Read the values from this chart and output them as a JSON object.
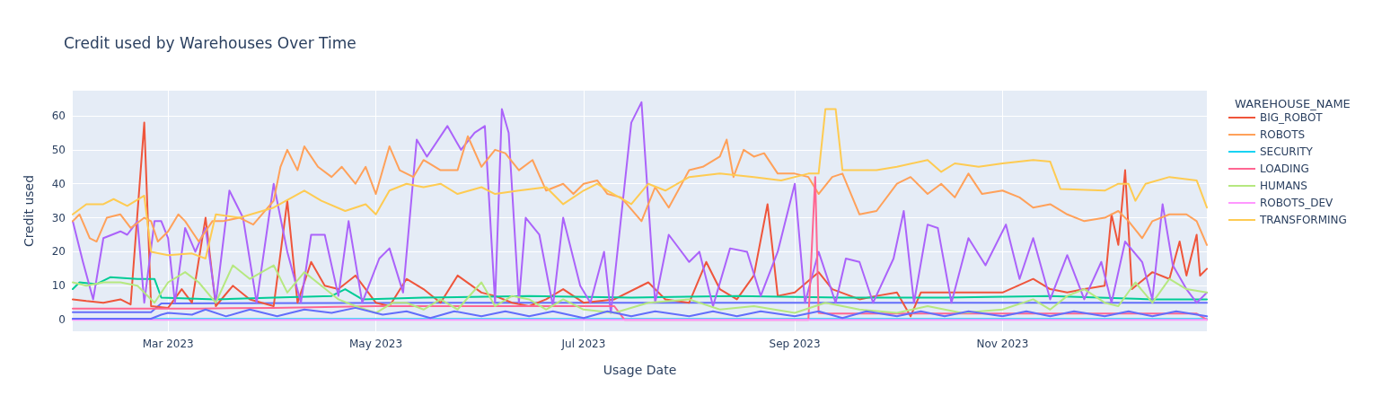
{
  "chart_data": {
    "type": "line",
    "title": "Credit used by Warehouses Over Time",
    "xlabel": "Usage Date",
    "ylabel": "Credit used",
    "legend_title": "WAREHOUSE_NAME",
    "legend": "right",
    "grid": true,
    "marker": "none",
    "line_style": "solid",
    "xlim": [
      "2023-02-01",
      "2023-12-31"
    ],
    "xticks": [
      {
        "value": "2023-03-01",
        "label": "Mar 2023"
      },
      {
        "value": "2023-05-01",
        "label": "May 2023"
      },
      {
        "value": "2023-07-01",
        "label": "Jul 2023"
      },
      {
        "value": "2023-09-01",
        "label": "Sep 2023"
      },
      {
        "value": "2023-11-01",
        "label": "Nov 2023"
      }
    ],
    "ylim": [
      -3.4,
      67.4
    ],
    "yticks": [
      0,
      10,
      20,
      30,
      40,
      50,
      60
    ],
    "series": [
      {
        "color": "#636efa",
        "x": [
          "2023-02-01",
          "2023-02-24",
          "2023-02-27",
          "2023-06-01",
          "2023-09-01",
          "2023-12-31"
        ],
        "values": [
          2.2,
          2.2,
          4.8,
          5,
          5,
          5
        ]
      },
      {
        "name": "BIG_ROBOT",
        "color": "#ef553b",
        "x": [
          "2023-02-01",
          "2023-02-05",
          "2023-02-10",
          "2023-02-15",
          "2023-02-18",
          "2023-02-22",
          "2023-02-24",
          "2023-03-01",
          "2023-03-05",
          "2023-03-08",
          "2023-03-12",
          "2023-03-15",
          "2023-03-20",
          "2023-03-25",
          "2023-04-01",
          "2023-04-05",
          "2023-04-08",
          "2023-04-12",
          "2023-04-16",
          "2023-04-20",
          "2023-04-25",
          "2023-05-01",
          "2023-05-05",
          "2023-05-10",
          "2023-05-15",
          "2023-05-20",
          "2023-05-25",
          "2023-06-01",
          "2023-06-05",
          "2023-06-10",
          "2023-06-15",
          "2023-06-20",
          "2023-06-25",
          "2023-07-01",
          "2023-07-10",
          "2023-07-20",
          "2023-07-25",
          "2023-08-01",
          "2023-08-06",
          "2023-08-10",
          "2023-08-15",
          "2023-08-20",
          "2023-08-24",
          "2023-08-27",
          "2023-09-01",
          "2023-09-08",
          "2023-09-12",
          "2023-09-20",
          "2023-09-25",
          "2023-10-01",
          "2023-10-05",
          "2023-10-08",
          "2023-10-15",
          "2023-10-25",
          "2023-11-01",
          "2023-11-10",
          "2023-11-15",
          "2023-11-20",
          "2023-11-25",
          "2023-12-01",
          "2023-12-03",
          "2023-12-05",
          "2023-12-07",
          "2023-12-09",
          "2023-12-15",
          "2023-12-20",
          "2023-12-23",
          "2023-12-25",
          "2023-12-28",
          "2023-12-29",
          "2023-12-31"
        ],
        "values": [
          6,
          5.5,
          5,
          6,
          4.5,
          58,
          4,
          3.5,
          9,
          5,
          30,
          4,
          10,
          6,
          4,
          35,
          5,
          17,
          10,
          9,
          13,
          5,
          4,
          12,
          9,
          5,
          13,
          8,
          7,
          5,
          4,
          6,
          9,
          5,
          6,
          11,
          6,
          5,
          17,
          9,
          6,
          13,
          34,
          7,
          8,
          14,
          9,
          6,
          7,
          8,
          1,
          8,
          8,
          8,
          8,
          12,
          9,
          8,
          9,
          10,
          31,
          22,
          44,
          9,
          14,
          12,
          23,
          13,
          25,
          13,
          15
        ]
      },
      {
        "color": "#00cc96",
        "x": [
          "2023-02-01",
          "2023-02-03",
          "2023-02-08",
          "2023-02-12",
          "2023-02-20",
          "2023-02-25",
          "2023-02-27",
          "2023-03-15",
          "2023-04-01",
          "2023-04-18",
          "2023-04-22",
          "2023-04-27",
          "2023-05-15",
          "2023-06-15",
          "2023-07-15",
          "2023-08-15",
          "2023-09-15",
          "2023-10-15",
          "2023-11-15",
          "2023-12-15",
          "2023-12-31"
        ],
        "values": [
          9,
          11,
          10.5,
          12.5,
          12,
          12,
          6.5,
          6,
          6.5,
          7,
          9,
          6,
          6.5,
          7,
          6.5,
          7,
          6.5,
          6.5,
          7,
          6,
          6
        ]
      },
      {
        "color": "#ab63fa",
        "x": [
          "2023-02-01",
          "2023-02-04",
          "2023-02-07",
          "2023-02-10",
          "2023-02-15",
          "2023-02-17",
          "2023-02-20",
          "2023-02-22",
          "2023-02-25",
          "2023-02-27",
          "2023-03-01",
          "2023-03-03",
          "2023-03-06",
          "2023-03-09",
          "2023-03-12",
          "2023-03-15",
          "2023-03-19",
          "2023-03-23",
          "2023-03-27",
          "2023-04-01",
          "2023-04-05",
          "2023-04-09",
          "2023-04-12",
          "2023-04-16",
          "2023-04-20",
          "2023-04-23",
          "2023-04-27",
          "2023-05-02",
          "2023-05-05",
          "2023-05-09",
          "2023-05-13",
          "2023-05-16",
          "2023-05-22",
          "2023-05-26",
          "2023-05-30",
          "2023-06-02",
          "2023-06-05",
          "2023-06-07",
          "2023-06-09",
          "2023-06-12",
          "2023-06-14",
          "2023-06-18",
          "2023-06-22",
          "2023-06-25",
          "2023-06-30",
          "2023-07-03",
          "2023-07-07",
          "2023-07-09",
          "2023-07-15",
          "2023-07-18",
          "2023-07-22",
          "2023-07-26",
          "2023-08-01",
          "2023-08-04",
          "2023-08-08",
          "2023-08-13",
          "2023-08-18",
          "2023-08-22",
          "2023-08-27",
          "2023-09-01",
          "2023-09-04",
          "2023-09-08",
          "2023-09-13",
          "2023-09-16",
          "2023-09-20",
          "2023-09-24",
          "2023-09-30",
          "2023-10-03",
          "2023-10-06",
          "2023-10-10",
          "2023-10-13",
          "2023-10-17",
          "2023-10-22",
          "2023-10-27",
          "2023-11-02",
          "2023-11-06",
          "2023-11-10",
          "2023-11-15",
          "2023-11-20",
          "2023-11-25",
          "2023-11-30",
          "2023-12-03",
          "2023-12-07",
          "2023-12-12",
          "2023-12-15",
          "2023-12-18",
          "2023-12-21",
          "2023-12-25",
          "2023-12-28",
          "2023-12-31"
        ],
        "values": [
          29,
          17,
          6,
          24,
          26,
          25,
          29,
          5,
          29,
          29,
          24,
          5,
          27,
          20,
          27,
          5,
          38,
          30,
          5,
          40,
          20,
          5,
          25,
          25,
          7,
          29,
          5,
          18,
          21,
          8,
          53,
          48,
          57,
          50,
          55,
          57,
          5,
          62,
          55,
          5,
          30,
          25,
          4,
          30,
          10,
          5,
          20,
          2,
          58,
          64,
          5,
          25,
          17,
          20,
          4,
          21,
          20,
          7,
          20,
          40,
          5,
          20,
          5,
          18,
          17,
          5,
          18,
          32,
          5,
          28,
          27,
          5,
          24,
          16,
          28,
          12,
          24,
          6,
          19,
          6,
          17,
          5,
          23,
          17,
          6,
          34,
          16,
          9,
          5,
          8
        ]
      },
      {
        "name": "ROBOTS",
        "color": "#ffa15a",
        "x": [
          "2023-02-01",
          "2023-02-03",
          "2023-02-06",
          "2023-02-08",
          "2023-02-11",
          "2023-02-15",
          "2023-02-18",
          "2023-02-22",
          "2023-02-24",
          "2023-02-26",
          "2023-03-01",
          "2023-03-04",
          "2023-03-06",
          "2023-03-08",
          "2023-03-10",
          "2023-03-14",
          "2023-03-17",
          "2023-03-22",
          "2023-03-26",
          "2023-04-01",
          "2023-04-03",
          "2023-04-05",
          "2023-04-08",
          "2023-04-10",
          "2023-04-14",
          "2023-04-18",
          "2023-04-21",
          "2023-04-25",
          "2023-04-28",
          "2023-05-01",
          "2023-05-05",
          "2023-05-08",
          "2023-05-12",
          "2023-05-15",
          "2023-05-20",
          "2023-05-25",
          "2023-05-28",
          "2023-06-01",
          "2023-06-05",
          "2023-06-08",
          "2023-06-12",
          "2023-06-16",
          "2023-06-20",
          "2023-06-25",
          "2023-06-28",
          "2023-07-01",
          "2023-07-05",
          "2023-07-08",
          "2023-07-12",
          "2023-07-18",
          "2023-07-22",
          "2023-07-26",
          "2023-08-01",
          "2023-08-05",
          "2023-08-10",
          "2023-08-12",
          "2023-08-14",
          "2023-08-17",
          "2023-08-20",
          "2023-08-23",
          "2023-08-27",
          "2023-09-01",
          "2023-09-05",
          "2023-09-08",
          "2023-09-12",
          "2023-09-15",
          "2023-09-20",
          "2023-09-25",
          "2023-10-01",
          "2023-10-05",
          "2023-10-10",
          "2023-10-14",
          "2023-10-18",
          "2023-10-22",
          "2023-10-26",
          "2023-11-01",
          "2023-11-06",
          "2023-11-10",
          "2023-11-15",
          "2023-11-20",
          "2023-11-25",
          "2023-12-01",
          "2023-12-05",
          "2023-12-08",
          "2023-12-12",
          "2023-12-15",
          "2023-12-20",
          "2023-12-25",
          "2023-12-28",
          "2023-12-31"
        ],
        "values": [
          29,
          31,
          24,
          23,
          30,
          31,
          27,
          30,
          29,
          23,
          26,
          31,
          29,
          26,
          23,
          29,
          29,
          30,
          28,
          35,
          45,
          50,
          44,
          51,
          45,
          42,
          45,
          40,
          45,
          37,
          51,
          44,
          42,
          47,
          44,
          44,
          54,
          45,
          50,
          49,
          44,
          47,
          38,
          40,
          37,
          40,
          41,
          37,
          36,
          29,
          39,
          33,
          44,
          45,
          48,
          53,
          42,
          50,
          48,
          49,
          43,
          43,
          42,
          37,
          42,
          43,
          31,
          32,
          40,
          42,
          37,
          40,
          36,
          43,
          37,
          38,
          36,
          33,
          34,
          31,
          29,
          30,
          32,
          29,
          24,
          29,
          31,
          31,
          29,
          22
        ]
      },
      {
        "name": "SECURITY",
        "color": "#19d3f3",
        "x": [
          "2023-02-01",
          "2023-06-01",
          "2023-10-01",
          "2023-12-31"
        ],
        "values": [
          0.2,
          0.2,
          0.2,
          0.2
        ]
      },
      {
        "name": "LOADING",
        "color": "#ff6692",
        "x": [
          "2023-02-01",
          "2023-03-10",
          "2023-04-01",
          "2023-05-01",
          "2023-07-10",
          "2023-07-13",
          "2023-09-05",
          "2023-09-07",
          "2023-09-08",
          "2023-09-10",
          "2023-12-28",
          "2023-12-31"
        ],
        "values": [
          3.3,
          3.3,
          3.5,
          4,
          4,
          0,
          0,
          42,
          2,
          1.8,
          1.8,
          0
        ]
      },
      {
        "name": "HUMANS",
        "color": "#b6e880",
        "x": [
          "2023-02-01",
          "2023-02-05",
          "2023-02-10",
          "2023-02-15",
          "2023-02-20",
          "2023-02-25",
          "2023-03-01",
          "2023-03-06",
          "2023-03-10",
          "2023-03-15",
          "2023-03-20",
          "2023-03-25",
          "2023-04-01",
          "2023-04-05",
          "2023-04-10",
          "2023-04-15",
          "2023-04-20",
          "2023-04-25",
          "2023-05-01",
          "2023-05-06",
          "2023-05-10",
          "2023-05-15",
          "2023-05-20",
          "2023-05-25",
          "2023-06-01",
          "2023-06-05",
          "2023-06-10",
          "2023-06-15",
          "2023-06-20",
          "2023-06-25",
          "2023-07-01",
          "2023-07-10",
          "2023-07-20",
          "2023-08-01",
          "2023-08-10",
          "2023-08-20",
          "2023-09-01",
          "2023-09-10",
          "2023-09-20",
          "2023-10-01",
          "2023-10-10",
          "2023-10-20",
          "2023-11-01",
          "2023-11-10",
          "2023-11-15",
          "2023-11-20",
          "2023-11-25",
          "2023-12-01",
          "2023-12-05",
          "2023-12-10",
          "2023-12-15",
          "2023-12-20",
          "2023-12-25",
          "2023-12-31"
        ],
        "values": [
          11,
          10,
          11,
          11,
          10,
          5,
          11,
          14,
          11,
          5,
          16,
          12,
          16,
          8,
          14,
          10,
          6,
          4,
          2,
          5,
          5,
          3,
          6,
          3,
          11,
          4,
          7,
          6,
          3,
          6,
          3,
          2,
          5,
          6,
          3,
          4,
          2,
          5,
          3,
          2,
          4,
          2,
          3,
          6,
          3,
          7,
          9,
          5,
          4,
          11,
          5,
          12,
          9,
          8
        ]
      },
      {
        "name": "ROBOTS_DEV",
        "color": "#ff97ff",
        "x": [
          "2023-02-01",
          "2023-12-31"
        ],
        "values": [
          0,
          0
        ]
      },
      {
        "name": "TRANSFORMING",
        "color": "#fecb52",
        "x": [
          "2023-02-01",
          "2023-02-05",
          "2023-02-10",
          "2023-02-13",
          "2023-02-17",
          "2023-02-22",
          "2023-02-24",
          "2023-03-01",
          "2023-03-08",
          "2023-03-12",
          "2023-03-15",
          "2023-03-22",
          "2023-04-01",
          "2023-04-10",
          "2023-04-15",
          "2023-04-22",
          "2023-04-28",
          "2023-05-01",
          "2023-05-05",
          "2023-05-10",
          "2023-05-15",
          "2023-05-20",
          "2023-05-25",
          "2023-06-01",
          "2023-06-05",
          "2023-06-12",
          "2023-06-20",
          "2023-06-25",
          "2023-07-01",
          "2023-07-05",
          "2023-07-08",
          "2023-07-15",
          "2023-07-20",
          "2023-07-25",
          "2023-08-01",
          "2023-08-10",
          "2023-08-20",
          "2023-08-28",
          "2023-09-05",
          "2023-09-08",
          "2023-09-10",
          "2023-09-13",
          "2023-09-15",
          "2023-09-25",
          "2023-10-01",
          "2023-10-10",
          "2023-10-14",
          "2023-10-18",
          "2023-10-25",
          "2023-11-01",
          "2023-11-10",
          "2023-11-15",
          "2023-11-18",
          "2023-12-01",
          "2023-12-05",
          "2023-12-08",
          "2023-12-10",
          "2023-12-13",
          "2023-12-20",
          "2023-12-28",
          "2023-12-31"
        ],
        "values": [
          31,
          34,
          34,
          35.5,
          33.5,
          36.5,
          20,
          19,
          19.5,
          18,
          31,
          30,
          33,
          38,
          35,
          32,
          34,
          31,
          38,
          40,
          39,
          40,
          37,
          39,
          37,
          38,
          39,
          34,
          38,
          40,
          38,
          34,
          40,
          38,
          42,
          43,
          42,
          41,
          43,
          43,
          62,
          62,
          44,
          44,
          45,
          47,
          43.5,
          46,
          45,
          46,
          47,
          46.5,
          38.5,
          38,
          40,
          40,
          35,
          40,
          42,
          41,
          33
        ]
      },
      {
        "color": "#636efa",
        "x": [
          "2023-02-01",
          "2023-02-24",
          "2023-02-27",
          "2023-03-01",
          "2023-03-08",
          "2023-03-12",
          "2023-03-18",
          "2023-03-25",
          "2023-04-02",
          "2023-04-10",
          "2023-04-18",
          "2023-04-25",
          "2023-05-03",
          "2023-05-10",
          "2023-05-17",
          "2023-05-24",
          "2023-06-01",
          "2023-06-08",
          "2023-06-15",
          "2023-06-22",
          "2023-07-01",
          "2023-07-08",
          "2023-07-15",
          "2023-07-22",
          "2023-08-01",
          "2023-08-08",
          "2023-08-15",
          "2023-08-22",
          "2023-09-01",
          "2023-09-08",
          "2023-09-15",
          "2023-09-22",
          "2023-10-01",
          "2023-10-08",
          "2023-10-15",
          "2023-10-22",
          "2023-11-01",
          "2023-11-08",
          "2023-11-15",
          "2023-11-22",
          "2023-12-01",
          "2023-12-08",
          "2023-12-15",
          "2023-12-22",
          "2023-12-31"
        ],
        "values": [
          0.3,
          0.3,
          1.5,
          2,
          1.5,
          3,
          1,
          3,
          1,
          3,
          2,
          3.5,
          1.5,
          2.5,
          0.5,
          2.5,
          1,
          2.5,
          1,
          2.5,
          0.5,
          2.5,
          1,
          2.5,
          1,
          2.5,
          1,
          2.5,
          1,
          2.5,
          0.5,
          2.5,
          1,
          2.5,
          1,
          2.5,
          1,
          2.5,
          1,
          2.5,
          1,
          2.5,
          1,
          2.5,
          1
        ]
      }
    ]
  }
}
